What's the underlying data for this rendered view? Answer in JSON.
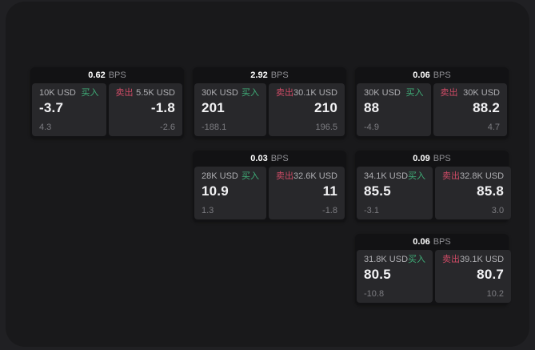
{
  "page": {
    "background": "#202023",
    "surface_background": "#19191b"
  },
  "labels": {
    "bps_unit": "BPS",
    "buy": "买入",
    "sell": "卖出"
  },
  "colors": {
    "buy_accent": "#3fae78",
    "sell_accent": "#cf4b66"
  },
  "cards": [
    {
      "bps": "0.62",
      "buy": {
        "size": "10K USD",
        "value": "-3.7",
        "change": "4.3"
      },
      "sell": {
        "size": "5.5K USD",
        "value": "-1.8",
        "change": "-2.6"
      }
    },
    {
      "bps": "2.92",
      "buy": {
        "size": "30K USD",
        "value": "201",
        "change": "-188.1"
      },
      "sell": {
        "size": "30.1K USD",
        "value": "210",
        "change": "196.5"
      }
    },
    {
      "bps": "0.06",
      "buy": {
        "size": "30K USD",
        "value": "88",
        "change": "-4.9"
      },
      "sell": {
        "size": "30K USD",
        "value": "88.2",
        "change": "4.7"
      }
    },
    {
      "bps": "0.03",
      "buy": {
        "size": "28K USD",
        "value": "10.9",
        "change": "1.3"
      },
      "sell": {
        "size": "32.6K USD",
        "value": "11",
        "change": "-1.8"
      }
    },
    {
      "bps": "0.09",
      "buy": {
        "size": "34.1K USD",
        "value": "85.5",
        "change": "-3.1"
      },
      "sell": {
        "size": "32.8K USD",
        "value": "85.8",
        "change": "3.0"
      }
    },
    {
      "bps": "0.06",
      "buy": {
        "size": "31.8K USD",
        "value": "80.5",
        "change": "-10.8"
      },
      "sell": {
        "size": "39.1K USD",
        "value": "80.7",
        "change": "10.2"
      }
    }
  ]
}
